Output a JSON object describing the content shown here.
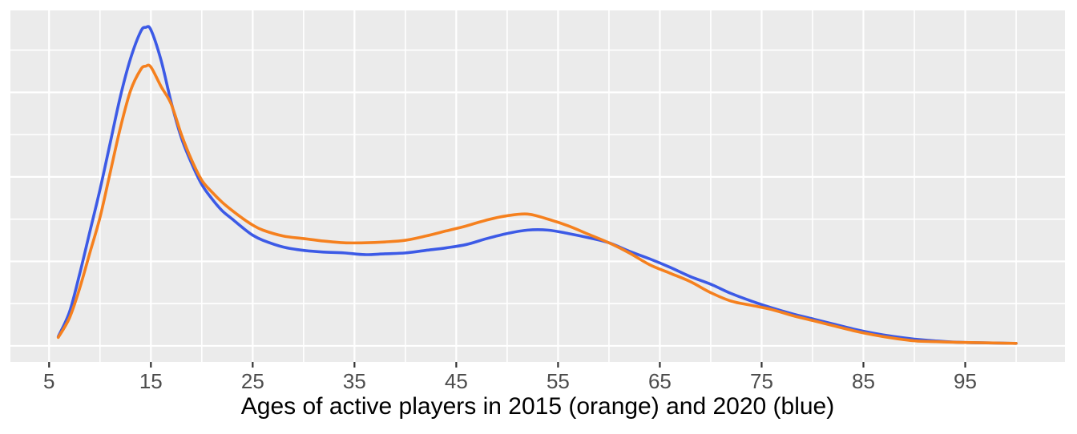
{
  "figure": {
    "background": "#FFFFFF",
    "panel_background": "#EBEBEB",
    "gridline_color": "#FFFFFF",
    "tick_mark_color": "#333333",
    "tick_label_color": "#4D4D4D",
    "axis_title_color": "#000000"
  },
  "chart_data": {
    "type": "line",
    "subtype": "density",
    "title": "",
    "xlabel": "Ages of active players in 2015 (orange) and 2020 (blue)",
    "ylabel": "",
    "grid": true,
    "legend_position": "none",
    "x_domain": [
      1.2,
      104.8
    ],
    "y_domain": [
      -0.0019,
      0.0397
    ],
    "x_ticks": [
      5,
      15,
      25,
      35,
      45,
      55,
      65,
      75,
      85,
      95
    ],
    "x_tick_labels": [
      "5",
      "15",
      "25",
      "35",
      "45",
      "55",
      "65",
      "75",
      "85",
      "95"
    ],
    "x_major_gridlines": [
      5,
      15,
      25,
      35,
      45,
      55,
      65,
      75,
      85,
      95
    ],
    "x_minor_gridlines": [
      10,
      20,
      30,
      40,
      50,
      60,
      70,
      80,
      90,
      100
    ],
    "y_major_gridlines": [
      0,
      0.01,
      0.02,
      0.03
    ],
    "y_minor_gridlines": [
      0.005,
      0.015,
      0.025,
      0.035
    ],
    "ages": [
      5.9,
      7,
      8,
      9,
      10,
      11,
      12,
      13,
      14,
      14.5,
      15,
      16,
      17,
      18,
      19,
      20,
      21,
      22,
      23,
      24,
      25,
      26,
      28,
      30,
      32,
      34,
      36,
      38,
      40,
      42,
      44,
      46,
      48,
      50,
      52,
      54,
      56,
      58,
      60,
      62,
      64,
      66,
      68,
      70,
      72,
      74,
      76,
      78,
      80,
      82,
      84,
      86,
      88,
      90,
      92,
      95,
      100
    ],
    "series": [
      {
        "name": "2020",
        "color": "#3C5AE6",
        "stroke_width": 3.6,
        "values": [
          0.0011,
          0.004,
          0.0085,
          0.0135,
          0.0185,
          0.024,
          0.0295,
          0.034,
          0.0372,
          0.0377,
          0.0374,
          0.0338,
          0.0288,
          0.0246,
          0.0216,
          0.0191,
          0.0174,
          0.016,
          0.015,
          0.014,
          0.0131,
          0.0125,
          0.0117,
          0.0113,
          0.0111,
          0.011,
          0.0108,
          0.0109,
          0.011,
          0.0113,
          0.0116,
          0.012,
          0.0127,
          0.0133,
          0.0137,
          0.0137,
          0.0133,
          0.0128,
          0.0122,
          0.0112,
          0.0103,
          0.0093,
          0.0082,
          0.0073,
          0.0062,
          0.0053,
          0.0045,
          0.0038,
          0.0032,
          0.0026,
          0.002,
          0.0015,
          0.0011,
          0.0008,
          0.0006,
          0.0004,
          0.0003
        ]
      },
      {
        "name": "2015",
        "color": "#F5801E",
        "stroke_width": 3.6,
        "values": [
          0.001,
          0.0033,
          0.0068,
          0.011,
          0.0152,
          0.0205,
          0.0258,
          0.0302,
          0.0327,
          0.0331,
          0.033,
          0.0307,
          0.0286,
          0.025,
          0.022,
          0.0196,
          0.0182,
          0.017,
          0.016,
          0.0151,
          0.0143,
          0.0137,
          0.013,
          0.0127,
          0.0124,
          0.0122,
          0.0122,
          0.0123,
          0.0125,
          0.013,
          0.0136,
          0.0142,
          0.0149,
          0.0154,
          0.0156,
          0.015,
          0.0142,
          0.0132,
          0.0122,
          0.011,
          0.0096,
          0.0086,
          0.0076,
          0.0063,
          0.0053,
          0.0048,
          0.0043,
          0.0036,
          0.003,
          0.0024,
          0.0018,
          0.0013,
          0.0009,
          0.0006,
          0.0005,
          0.0004,
          0.0003
        ]
      }
    ]
  }
}
